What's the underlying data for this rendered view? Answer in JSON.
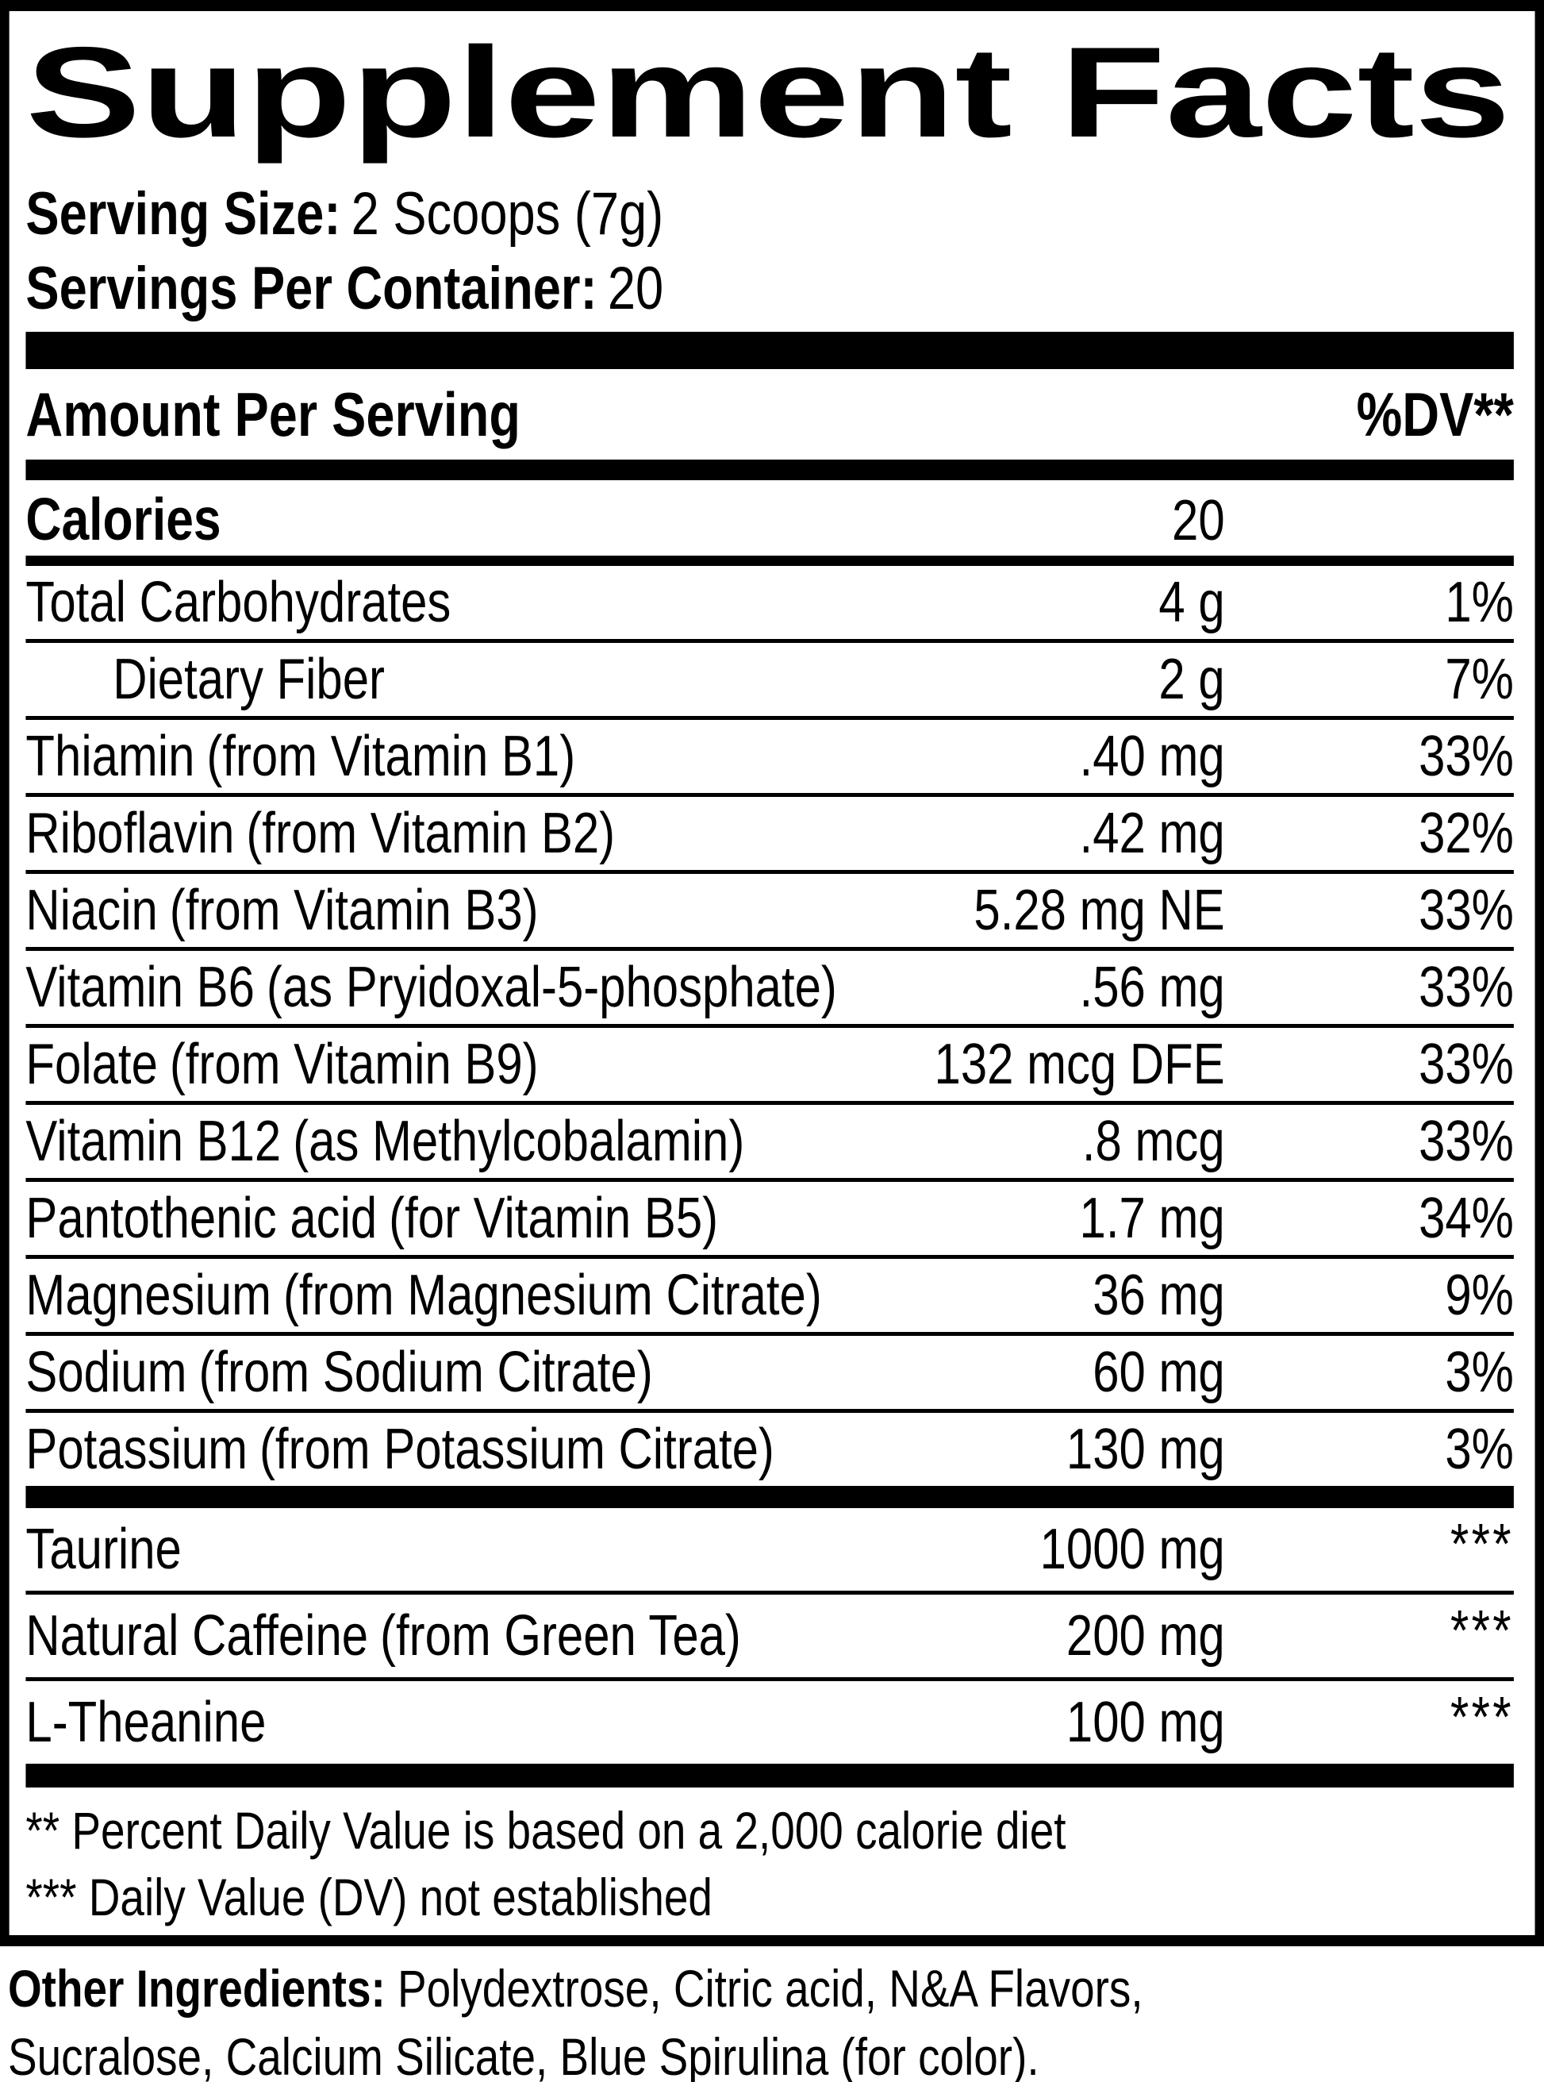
{
  "title": "Supplement Facts",
  "serving": {
    "size_label": "Serving Size:",
    "size_value": "2 Scoops (7g)",
    "container_label": "Servings Per Container:",
    "container_value": "20"
  },
  "table": {
    "header": {
      "amount_col": "Amount Per Serving",
      "dv_col": "%DV**"
    },
    "calories": {
      "name": "Calories",
      "amount": "20"
    },
    "main_rows": [
      {
        "name": "Total Carbohydrates",
        "detail": "",
        "amount": "4 g",
        "dv": "1%",
        "indent": false
      },
      {
        "name": "Dietary Fiber",
        "detail": "",
        "amount": "2 g",
        "dv": "7%",
        "indent": true
      },
      {
        "name": "Thiamin",
        "detail": "(from Vitamin B1)",
        "amount": ".40 mg",
        "dv": "33%",
        "indent": false
      },
      {
        "name": "Riboflavin",
        "detail": "(from Vitamin B2)",
        "amount": ".42 mg",
        "dv": "32%",
        "indent": false
      },
      {
        "name": "Niacin",
        "detail": "(from Vitamin B3)",
        "amount": "5.28 mg NE",
        "dv": "33%",
        "indent": false
      },
      {
        "name": "Vitamin B6",
        "detail": "(as Pryidoxal-5-phosphate)",
        "amount": ".56 mg",
        "dv": "33%",
        "indent": false
      },
      {
        "name": "Folate",
        "detail": "(from Vitamin B9)",
        "amount": "132 mcg DFE",
        "dv": "33%",
        "indent": false
      },
      {
        "name": "Vitamin B12",
        "detail": "(as Methylcobalamin)",
        "amount": ".8 mcg",
        "dv": "33%",
        "indent": false
      },
      {
        "name": "Pantothenic acid",
        "detail": "(for Vitamin B5)",
        "amount": "1.7 mg",
        "dv": "34%",
        "indent": false
      },
      {
        "name": "Magnesium",
        "detail": "(from Magnesium Citrate)",
        "amount": "36 mg",
        "dv": "9%",
        "indent": false
      },
      {
        "name": "Sodium",
        "detail": "(from Sodium Citrate)",
        "amount": "60 mg",
        "dv": "3%",
        "indent": false
      },
      {
        "name": "Potassium",
        "detail": "(from Potassium Citrate)",
        "amount": "130 mg",
        "dv": "3%",
        "indent": false
      }
    ],
    "extra_rows": [
      {
        "name": "Taurine",
        "detail": "",
        "amount": "1000 mg",
        "dv": "***",
        "indent": false
      },
      {
        "name": "Natural Caffeine",
        "detail": "(from Green Tea)",
        "amount": "200 mg",
        "dv": "***",
        "indent": false
      },
      {
        "name": "L-Theanine",
        "detail": "",
        "amount": "100 mg",
        "dv": "***",
        "indent": false
      }
    ],
    "footnotes": [
      "** Percent Daily Value is based on a 2,000 calorie diet",
      "*** Daily Value (DV) not established"
    ]
  },
  "other_ingredients": {
    "label": "Other Ingredients:",
    "line1": "Polydextrose, Citric acid, N&A Flavors,",
    "line2": "Sucralose, Calcium Silicate, Blue Spirulina (for color)."
  },
  "colors": {
    "ink": "#000000",
    "background": "#ffffff"
  }
}
